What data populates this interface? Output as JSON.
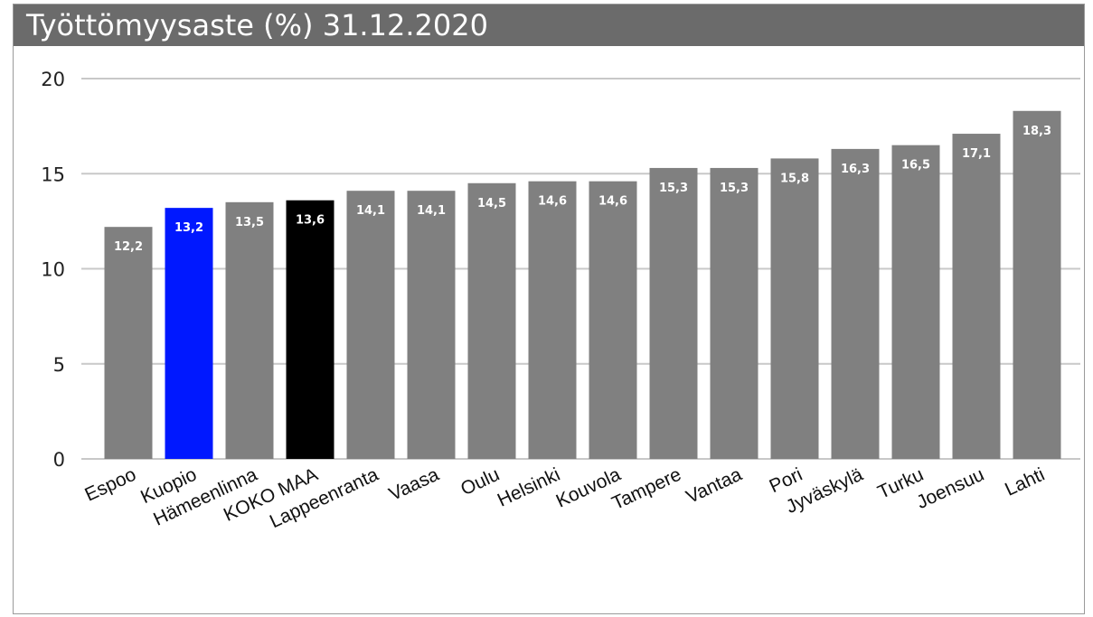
{
  "chart_data": {
    "type": "bar",
    "title": "Työttömyysaste (%) 31.12.2020",
    "xlabel": "",
    "ylabel": "",
    "ylim": [
      0,
      20
    ],
    "yticks": [
      0,
      5,
      10,
      15,
      20
    ],
    "grid": true,
    "legend": "none",
    "categories": [
      "Espoo",
      "Kuopio",
      "Hämeenlinna",
      "KOKO MAA",
      "Lappeenranta",
      "Vaasa",
      "Oulu",
      "Helsinki",
      "Kouvola",
      "Tampere",
      "Vantaa",
      "Pori",
      "Jyväskylä",
      "Turku",
      "Joensuu",
      "Lahti"
    ],
    "values": [
      12.2,
      13.2,
      13.5,
      13.6,
      14.1,
      14.1,
      14.5,
      14.6,
      14.6,
      15.3,
      15.3,
      15.8,
      16.3,
      16.5,
      17.1,
      18.3
    ],
    "value_labels": [
      "12,2",
      "13,2",
      "13,5",
      "13,6",
      "14,1",
      "14,1",
      "14,5",
      "14,6",
      "14,6",
      "15,3",
      "15,3",
      "15,8",
      "16,3",
      "16,5",
      "17,1",
      "18,3"
    ],
    "colors": {
      "default_bar": "#808080",
      "highlight_kuopio": "#0018ff",
      "highlight_koko_maa": "#000000",
      "gridline": "#c8c8c8",
      "title_bar": "#6b6b6b"
    },
    "bar_colors": [
      "#808080",
      "#0018ff",
      "#808080",
      "#000000",
      "#808080",
      "#808080",
      "#808080",
      "#808080",
      "#808080",
      "#808080",
      "#808080",
      "#808080",
      "#808080",
      "#808080",
      "#808080",
      "#808080"
    ]
  }
}
